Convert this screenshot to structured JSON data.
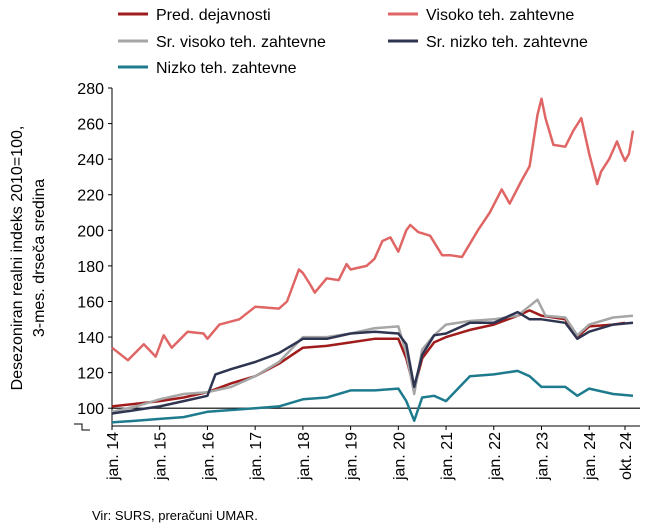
{
  "chart_data": {
    "type": "line",
    "ylabel_lines": [
      "Desezoniran realni indeks 2010=100,",
      "3-mes. drseča sredina"
    ],
    "source": "Vir: SURS, preračuni UMAR.",
    "ylim": [
      90,
      280
    ],
    "yticks": [
      100,
      120,
      140,
      160,
      180,
      200,
      220,
      240,
      260,
      280
    ],
    "x_start": "2014-01",
    "x_end": "2024-10",
    "x_tick_labels": [
      {
        "label": "jan. 14",
        "month": "2014-01"
      },
      {
        "label": "jan. 15",
        "month": "2015-01"
      },
      {
        "label": "jan. 16",
        "month": "2016-01"
      },
      {
        "label": "jan. 17",
        "month": "2017-01"
      },
      {
        "label": "jan. 18",
        "month": "2018-01"
      },
      {
        "label": "jan. 19",
        "month": "2019-01"
      },
      {
        "label": "jan. 20",
        "month": "2020-01"
      },
      {
        "label": "jan. 21",
        "month": "2021-01"
      },
      {
        "label": "jan. 22",
        "month": "2022-01"
      },
      {
        "label": "jan. 23",
        "month": "2023-01"
      },
      {
        "label": "jan. 24",
        "month": "2024-01"
      },
      {
        "label": "okt. 24",
        "month": "2024-10"
      }
    ],
    "reference_line": 100,
    "legend_position": "top",
    "series": [
      {
        "name": "Pred. dejavnosti",
        "color": "#a01c1c",
        "points": [
          [
            "2014-01",
            101
          ],
          [
            "2015-01",
            104
          ],
          [
            "2015-07",
            106
          ],
          [
            "2016-01",
            109
          ],
          [
            "2016-07",
            114
          ],
          [
            "2017-01",
            118
          ],
          [
            "2017-07",
            125
          ],
          [
            "2018-01",
            134
          ],
          [
            "2018-07",
            135
          ],
          [
            "2019-01",
            137
          ],
          [
            "2019-07",
            139
          ],
          [
            "2020-01",
            139
          ],
          [
            "2020-03",
            128
          ],
          [
            "2020-05",
            111
          ],
          [
            "2020-07",
            128
          ],
          [
            "2020-10",
            137
          ],
          [
            "2021-01",
            140
          ],
          [
            "2021-07",
            144
          ],
          [
            "2022-01",
            147
          ],
          [
            "2022-07",
            152
          ],
          [
            "2022-10",
            155
          ],
          [
            "2023-01",
            152
          ],
          [
            "2023-07",
            150
          ],
          [
            "2023-10",
            140
          ],
          [
            "2024-01",
            146
          ],
          [
            "2024-07",
            147
          ],
          [
            "2024-10",
            148
          ]
        ]
      },
      {
        "name": "Visoko teh. zahtevne",
        "color": "#e06666",
        "points": [
          [
            "2014-01",
            134
          ],
          [
            "2014-05",
            127
          ],
          [
            "2014-09",
            136
          ],
          [
            "2014-12",
            129
          ],
          [
            "2015-02",
            141
          ],
          [
            "2015-04",
            134
          ],
          [
            "2015-08",
            143
          ],
          [
            "2015-12",
            142
          ],
          [
            "2016-01",
            139
          ],
          [
            "2016-04",
            147
          ],
          [
            "2016-09",
            150
          ],
          [
            "2017-01",
            157
          ],
          [
            "2017-07",
            156
          ],
          [
            "2017-09",
            160
          ],
          [
            "2017-12",
            178
          ],
          [
            "2018-01",
            176
          ],
          [
            "2018-03",
            169
          ],
          [
            "2018-04",
            165
          ],
          [
            "2018-07",
            173
          ],
          [
            "2018-10",
            172
          ],
          [
            "2018-12",
            181
          ],
          [
            "2019-01",
            178
          ],
          [
            "2019-05",
            180
          ],
          [
            "2019-07",
            184
          ],
          [
            "2019-09",
            194
          ],
          [
            "2019-11",
            196
          ],
          [
            "2020-01",
            188
          ],
          [
            "2020-03",
            200
          ],
          [
            "2020-04",
            203
          ],
          [
            "2020-06",
            199
          ],
          [
            "2020-09",
            197
          ],
          [
            "2020-12",
            186
          ],
          [
            "2021-02",
            186
          ],
          [
            "2021-05",
            185
          ],
          [
            "2021-09",
            200
          ],
          [
            "2021-12",
            210
          ],
          [
            "2022-03",
            223
          ],
          [
            "2022-05",
            215
          ],
          [
            "2022-08",
            228
          ],
          [
            "2022-10",
            236
          ],
          [
            "2022-12",
            265
          ],
          [
            "2023-01",
            274
          ],
          [
            "2023-02",
            263
          ],
          [
            "2023-04",
            248
          ],
          [
            "2023-07",
            247
          ],
          [
            "2023-09",
            256
          ],
          [
            "2023-11",
            263
          ],
          [
            "2024-01",
            243
          ],
          [
            "2024-03",
            226
          ],
          [
            "2024-04",
            233
          ],
          [
            "2024-06",
            240
          ],
          [
            "2024-08",
            250
          ],
          [
            "2024-09",
            244
          ],
          [
            "2024-10",
            239
          ],
          [
            "2024-11",
            243
          ],
          [
            "2024-12",
            256
          ]
        ]
      },
      {
        "name": "Sr. visoko teh. zahtevne",
        "color": "#a6a6a6",
        "points": [
          [
            "2014-01",
            98
          ],
          [
            "2014-07",
            101
          ],
          [
            "2015-01",
            105
          ],
          [
            "2015-07",
            108
          ],
          [
            "2016-01",
            109
          ],
          [
            "2016-07",
            112
          ],
          [
            "2017-01",
            118
          ],
          [
            "2017-07",
            126
          ],
          [
            "2018-01",
            140
          ],
          [
            "2018-07",
            140
          ],
          [
            "2019-01",
            142
          ],
          [
            "2019-07",
            145
          ],
          [
            "2020-01",
            146
          ],
          [
            "2020-03",
            131
          ],
          [
            "2020-05",
            108
          ],
          [
            "2020-07",
            133
          ],
          [
            "2020-10",
            141
          ],
          [
            "2021-01",
            147
          ],
          [
            "2021-07",
            149
          ],
          [
            "2022-01",
            150
          ],
          [
            "2022-07",
            152
          ],
          [
            "2022-12",
            161
          ],
          [
            "2023-02",
            152
          ],
          [
            "2023-07",
            151
          ],
          [
            "2023-10",
            141
          ],
          [
            "2024-01",
            147
          ],
          [
            "2024-07",
            151
          ],
          [
            "2024-12",
            152
          ]
        ]
      },
      {
        "name": "Sr. nizko teh. zahtevne",
        "color": "#2f3550",
        "points": [
          [
            "2014-01",
            97
          ],
          [
            "2014-07",
            99
          ],
          [
            "2015-01",
            101
          ],
          [
            "2015-07",
            104
          ],
          [
            "2016-01",
            107
          ],
          [
            "2016-03",
            119
          ],
          [
            "2016-07",
            122
          ],
          [
            "2017-01",
            126
          ],
          [
            "2017-07",
            131
          ],
          [
            "2018-01",
            139
          ],
          [
            "2018-07",
            139
          ],
          [
            "2019-01",
            142
          ],
          [
            "2019-07",
            143
          ],
          [
            "2020-01",
            142
          ],
          [
            "2020-03",
            136
          ],
          [
            "2020-05",
            112
          ],
          [
            "2020-07",
            130
          ],
          [
            "2020-10",
            141
          ],
          [
            "2021-01",
            142
          ],
          [
            "2021-07",
            148
          ],
          [
            "2022-01",
            148
          ],
          [
            "2022-07",
            154
          ],
          [
            "2022-10",
            150
          ],
          [
            "2023-01",
            150
          ],
          [
            "2023-07",
            148
          ],
          [
            "2023-10",
            139
          ],
          [
            "2024-01",
            143
          ],
          [
            "2024-07",
            147
          ],
          [
            "2024-12",
            148
          ]
        ]
      },
      {
        "name": "Nizko teh. zahtevne",
        "color": "#1e7b8e",
        "points": [
          [
            "2014-01",
            92
          ],
          [
            "2014-07",
            93
          ],
          [
            "2015-01",
            94
          ],
          [
            "2015-07",
            95
          ],
          [
            "2016-01",
            98
          ],
          [
            "2016-07",
            99
          ],
          [
            "2017-01",
            100
          ],
          [
            "2017-07",
            101
          ],
          [
            "2018-01",
            105
          ],
          [
            "2018-07",
            106
          ],
          [
            "2019-01",
            110
          ],
          [
            "2019-07",
            110
          ],
          [
            "2020-01",
            111
          ],
          [
            "2020-03",
            104
          ],
          [
            "2020-05",
            93
          ],
          [
            "2020-07",
            106
          ],
          [
            "2020-10",
            107
          ],
          [
            "2021-01",
            104
          ],
          [
            "2021-07",
            118
          ],
          [
            "2022-01",
            119
          ],
          [
            "2022-07",
            121
          ],
          [
            "2022-10",
            118
          ],
          [
            "2023-01",
            112
          ],
          [
            "2023-07",
            112
          ],
          [
            "2023-10",
            107
          ],
          [
            "2024-01",
            111
          ],
          [
            "2024-07",
            108
          ],
          [
            "2024-12",
            107
          ]
        ]
      }
    ]
  }
}
